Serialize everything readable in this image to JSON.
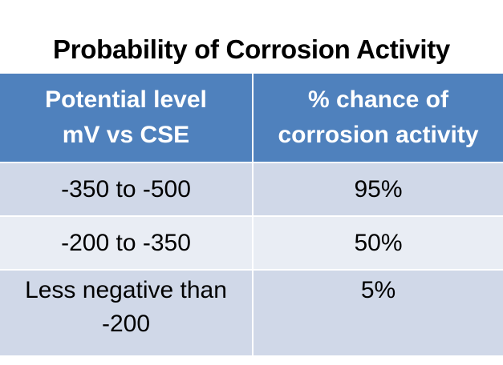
{
  "title": "Probability of Corrosion Activity",
  "table": {
    "headers": [
      [
        "Potential level",
        "mV vs CSE"
      ],
      [
        "% chance of",
        "corrosion activity"
      ]
    ],
    "rows": [
      {
        "potential": [
          "-350 to -500"
        ],
        "chance": "95%"
      },
      {
        "potential": [
          "-200 to -350"
        ],
        "chance": "50%"
      },
      {
        "potential": [
          "Less negative than",
          "-200"
        ],
        "chance": "5%"
      }
    ]
  },
  "colors": {
    "header_bg": "#4f81bd",
    "row_band_1": "#d0d8e8",
    "row_band_2": "#e9edf4",
    "header_text": "#ffffff"
  }
}
